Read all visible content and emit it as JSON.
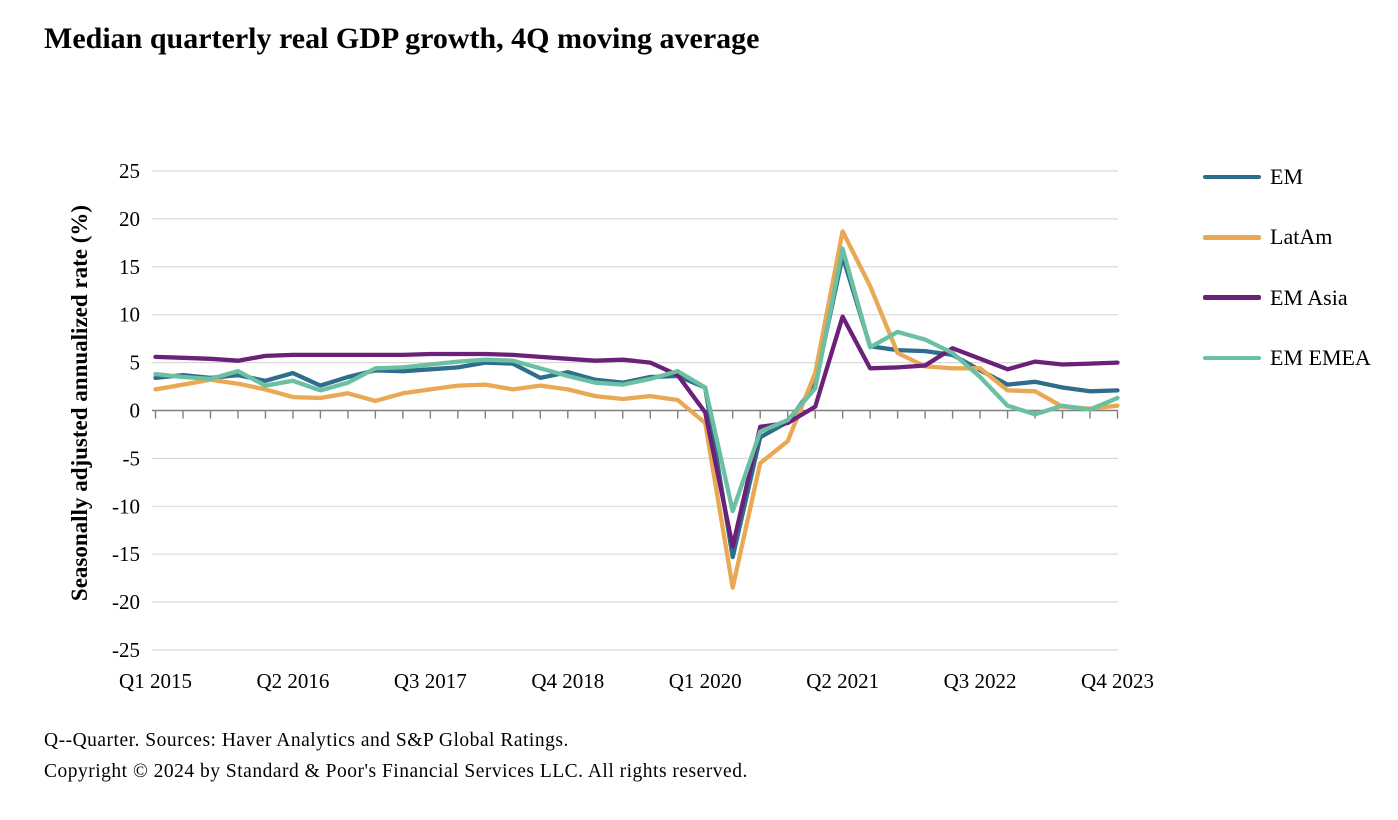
{
  "title": "Median quarterly real GDP growth, 4Q moving average",
  "footnotes": {
    "line1": "Q--Quarter. Sources: Haver Analytics and S&P Global Ratings.",
    "line2": "Copyright © 2024 by Standard & Poor's Financial Services LLC. All rights reserved."
  },
  "chart_data": {
    "type": "line",
    "title": "Median quarterly real GDP growth, 4Q moving average",
    "xlabel": "",
    "ylabel": "Seasonally adjusted annualized rate (%)",
    "ylim": [
      -25,
      25
    ],
    "ytick_step": 5,
    "grid": "horizontal",
    "legend_position": "right",
    "axis_color": "#7f7f7f",
    "gridline_color": "#d9d9d9",
    "x_categories": [
      "Q1 2015",
      "Q2 2015",
      "Q3 2015",
      "Q4 2015",
      "Q1 2016",
      "Q2 2016",
      "Q3 2016",
      "Q4 2016",
      "Q1 2017",
      "Q2 2017",
      "Q3 2017",
      "Q4 2017",
      "Q1 2018",
      "Q2 2018",
      "Q3 2018",
      "Q4 2018",
      "Q1 2019",
      "Q2 2019",
      "Q3 2019",
      "Q4 2019",
      "Q1 2020",
      "Q2 2020",
      "Q3 2020",
      "Q4 2020",
      "Q1 2021",
      "Q2 2021",
      "Q3 2021",
      "Q4 2021",
      "Q1 2022",
      "Q2 2022",
      "Q3 2022",
      "Q4 2022",
      "Q1 2023",
      "Q2 2023",
      "Q3 2023",
      "Q4 2023"
    ],
    "x_ticks": [
      {
        "index": 0,
        "label": "Q1 2015"
      },
      {
        "index": 5,
        "label": "Q2 2016"
      },
      {
        "index": 10,
        "label": "Q3 2017"
      },
      {
        "index": 15,
        "label": "Q4 2018"
      },
      {
        "index": 20,
        "label": "Q1 2020"
      },
      {
        "index": 25,
        "label": "Q2 2021"
      },
      {
        "index": 30,
        "label": "Q3 2022"
      },
      {
        "index": 35,
        "label": "Q4 2023"
      }
    ],
    "series": [
      {
        "name": "EM",
        "color": "#2E6D8C",
        "values": [
          3.4,
          3.7,
          3.4,
          3.7,
          3.1,
          3.9,
          2.6,
          3.5,
          4.2,
          4.1,
          4.3,
          4.5,
          5.0,
          4.9,
          3.4,
          4.0,
          3.2,
          2.9,
          3.5,
          3.6,
          2.4,
          -15.3,
          -2.8,
          -1.2,
          2.7,
          16.1,
          6.7,
          6.3,
          6.2,
          5.8,
          4.2,
          2.7,
          3.0,
          2.4,
          2.0,
          2.1
        ]
      },
      {
        "name": "LatAm",
        "color": "#E9A854",
        "values": [
          2.2,
          2.7,
          3.2,
          2.8,
          2.2,
          1.4,
          1.3,
          1.8,
          1.0,
          1.8,
          2.2,
          2.6,
          2.7,
          2.2,
          2.6,
          2.2,
          1.5,
          1.2,
          1.5,
          1.1,
          -1.3,
          -18.5,
          -5.5,
          -3.2,
          3.9,
          18.7,
          13.0,
          6.0,
          4.6,
          4.4,
          4.4,
          2.1,
          2.0,
          0.4,
          0.2,
          0.5
        ]
      },
      {
        "name": "EM Asia",
        "color": "#6B2079",
        "values": [
          5.6,
          5.5,
          5.4,
          5.2,
          5.7,
          5.8,
          5.8,
          5.8,
          5.8,
          5.8,
          5.9,
          5.9,
          5.9,
          5.8,
          5.6,
          5.4,
          5.2,
          5.3,
          5.0,
          3.7,
          -0.2,
          -14.2,
          -1.7,
          -1.3,
          0.4,
          9.8,
          4.4,
          4.5,
          4.7,
          6.5,
          5.4,
          4.3,
          5.1,
          4.8,
          4.9,
          5.0
        ]
      },
      {
        "name": "EM EMEA",
        "color": "#6BBFA3",
        "values": [
          3.8,
          3.5,
          3.3,
          4.1,
          2.6,
          3.1,
          2.1,
          2.9,
          4.4,
          4.5,
          4.8,
          5.1,
          5.3,
          5.2,
          4.4,
          3.6,
          2.9,
          2.7,
          3.3,
          4.1,
          2.4,
          -10.5,
          -2.2,
          -1.0,
          2.3,
          16.9,
          6.6,
          8.2,
          7.4,
          6.0,
          3.5,
          0.5,
          -0.4,
          0.5,
          0.1,
          1.3
        ]
      }
    ]
  }
}
